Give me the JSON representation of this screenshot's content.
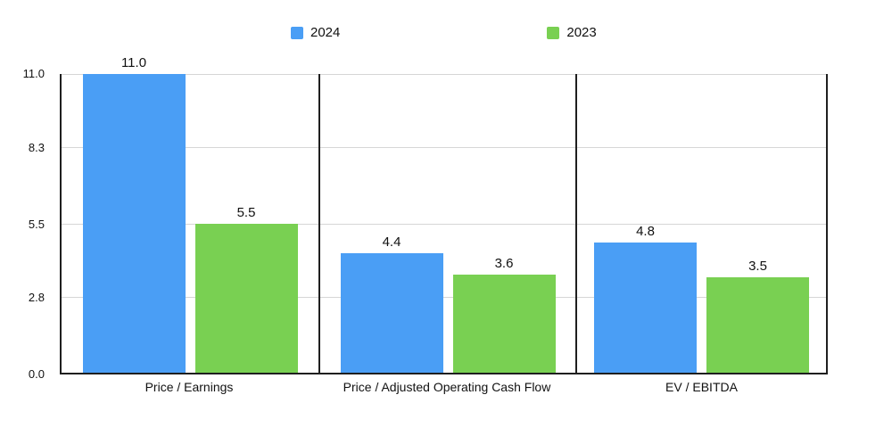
{
  "chart_data": {
    "type": "bar",
    "title": "",
    "categories": [
      "Price / Earnings",
      "Price / Adjusted Operating Cash Flow",
      "EV / EBITDA"
    ],
    "series": [
      {
        "name": "2024",
        "color": "#4a9ef5",
        "values": [
          11.0,
          4.4,
          4.8
        ],
        "value_labels": [
          "11.0",
          "4.4",
          "4.8"
        ]
      },
      {
        "name": "2023",
        "color": "#79d052",
        "values": [
          5.5,
          3.6,
          3.5
        ],
        "value_labels": [
          "5.5",
          "3.6",
          "3.5"
        ]
      }
    ],
    "ylim": [
      0,
      11
    ],
    "yticks": [
      {
        "value": 0.0,
        "label": "0.0"
      },
      {
        "value": 2.8,
        "label": "2.8"
      },
      {
        "value": 5.5,
        "label": "5.5"
      },
      {
        "value": 8.3,
        "label": "8.3"
      },
      {
        "value": 11.0,
        "label": "11.0"
      }
    ],
    "grid": true,
    "legend_position": "top",
    "panel_dividers": true,
    "colors": {
      "axis": "#1f1f1f",
      "gridline": "#d6d6d6",
      "text": "#111111",
      "background": "#ffffff"
    }
  }
}
